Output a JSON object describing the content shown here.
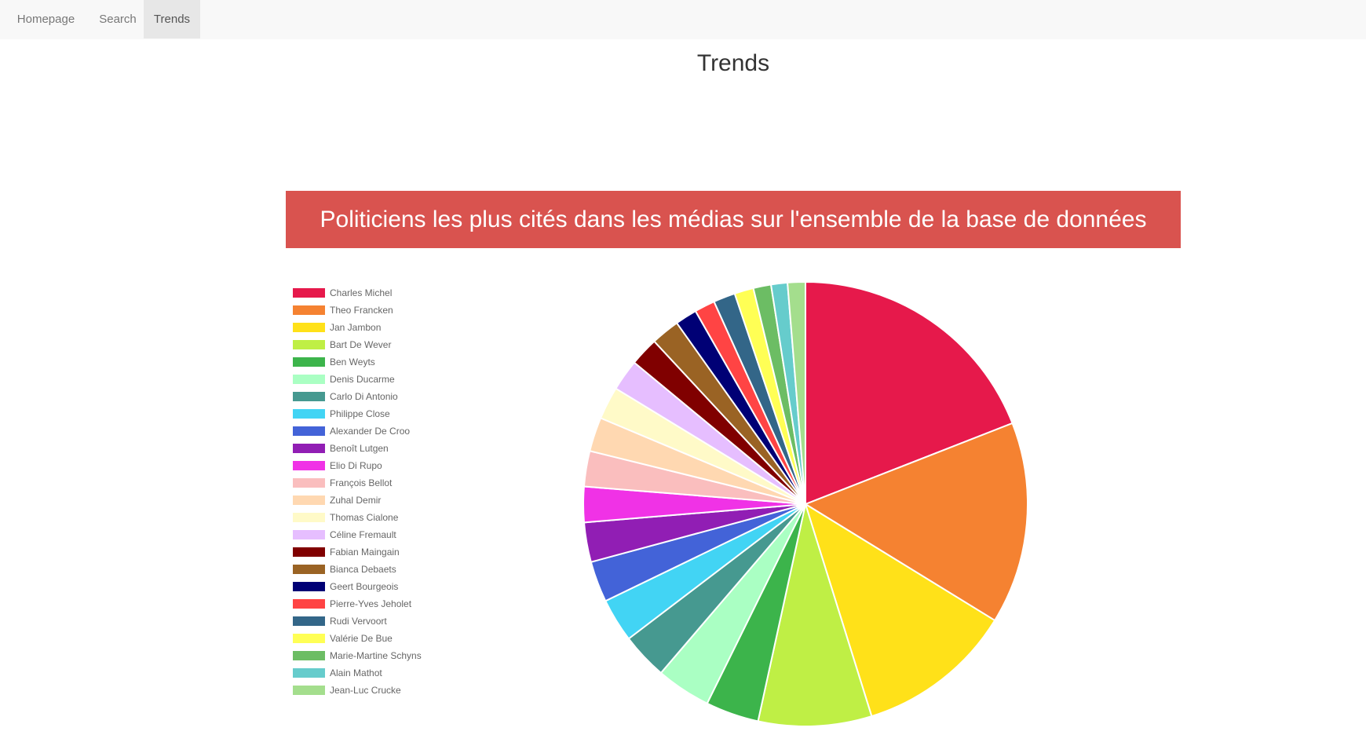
{
  "nav": {
    "items": [
      {
        "label": "Homepage"
      },
      {
        "label": "Search"
      },
      {
        "label": "Trends"
      }
    ]
  },
  "page_title": "Trends",
  "banner_title": "Politiciens les plus cités dans les médias sur l'ensemble de la base de données",
  "chart_data": {
    "type": "pie",
    "title": "Politiciens les plus cités dans les médias sur l'ensemble de la base de données",
    "legend_position": "left",
    "categories": [
      "Charles Michel",
      "Theo Francken",
      "Jan Jambon",
      "Bart De Wever",
      "Ben Weyts",
      "Denis Ducarme",
      "Carlo Di Antonio",
      "Philippe Close",
      "Alexander De Croo",
      "Benoît Lutgen",
      "Elio Di Rupo",
      "François Bellot",
      "Zuhal Demir",
      "Thomas Cialone",
      "Céline Fremault",
      "Fabian Maingain",
      "Bianca Debaets",
      "Geert Bourgeois",
      "Pierre-Yves Jeholet",
      "Rudi Vervoort",
      "Valérie De Bue",
      "Marie-Martine Schyns",
      "Alain Mathot",
      "Jean-Luc Crucke"
    ],
    "values": [
      19.2,
      14.8,
      11.5,
      8.3,
      3.9,
      4.0,
      3.4,
      3.2,
      3.0,
      2.9,
      2.6,
      2.6,
      2.5,
      2.4,
      2.3,
      2.1,
      2.1,
      1.6,
      1.5,
      1.6,
      1.4,
      1.3,
      1.2,
      1.3
    ],
    "colors": [
      "#e6194b",
      "#f58231",
      "#ffe119",
      "#bfef45",
      "#3cb44b",
      "#aaffc3",
      "#469990",
      "#42d4f4",
      "#4363d8",
      "#911eb4",
      "#f032e6",
      "#fabebe",
      "#ffd8b1",
      "#fffac8",
      "#e6beff",
      "#800000",
      "#9a6324",
      "#000075",
      "#ff4444",
      "#336688",
      "#ffff55",
      "#6cbd64",
      "#66cccc",
      "#a4de8d"
    ]
  }
}
